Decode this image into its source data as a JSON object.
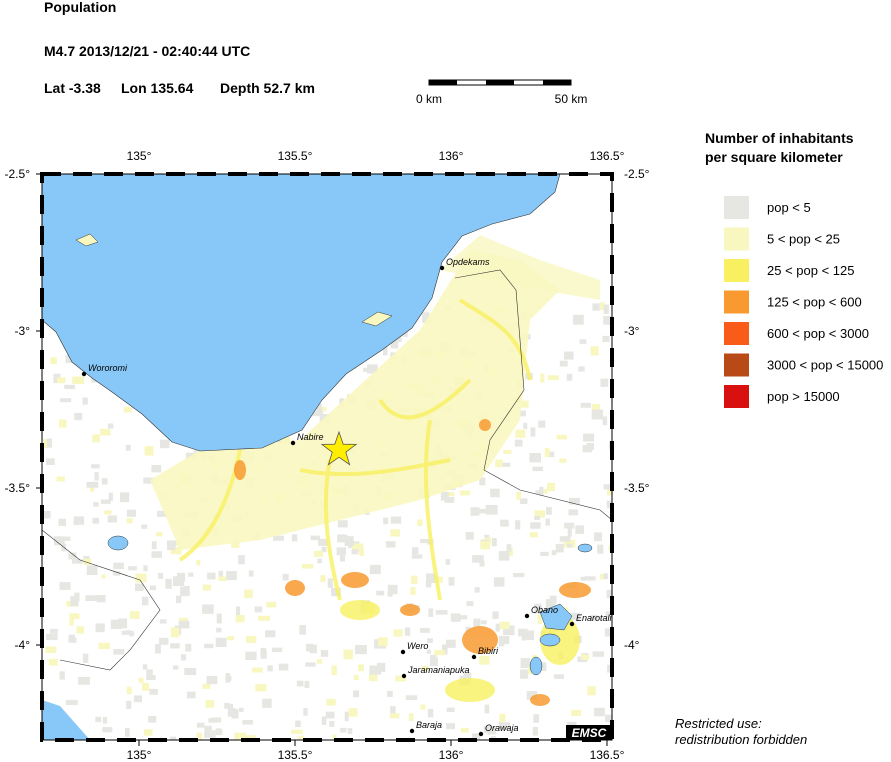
{
  "header": {
    "title": "Population",
    "event": "M4.7  2013/12/21 - 02:40:44 UTC",
    "lat": "Lat -3.38",
    "lon": "Lon 135.64",
    "depth": "Depth  52.7 km"
  },
  "scale_bar": {
    "start": "0 km",
    "end": "50 km"
  },
  "map": {
    "lon_ticks": [
      {
        "value": 135,
        "label": "135°"
      },
      {
        "value": 135.5,
        "label": "135.5°"
      },
      {
        "value": 136,
        "label": "136°"
      },
      {
        "value": 136.5,
        "label": "136.5°"
      }
    ],
    "lat_ticks": [
      {
        "value": -2.5,
        "label": "-2.5°"
      },
      {
        "value": -3,
        "label": "-3°"
      },
      {
        "value": -3.5,
        "label": "-3.5°"
      },
      {
        "value": -4,
        "label": "-4°"
      }
    ],
    "places": [
      "Opdekams",
      "Wororomi",
      "Nabire",
      "Obano",
      "Enarotali",
      "Wero",
      "Bibiri",
      "Jaramaniapuka",
      "Baraja",
      "Orawaja"
    ],
    "logo": "EMSC"
  },
  "legend": {
    "title": [
      "Number of inhabitants",
      "per square kilometer"
    ],
    "items": [
      {
        "label": "pop < 5",
        "color": "#e6e6e2"
      },
      {
        "label": "5 < pop < 25",
        "color": "#f9f7c0"
      },
      {
        "label": "25 < pop < 125",
        "color": "#f8f060"
      },
      {
        "label": "125 < pop < 600",
        "color": "#f89a30"
      },
      {
        "label": "600 < pop < 3000",
        "color": "#f85c18"
      },
      {
        "label": "3000 < pop < 15000",
        "color": "#b84a18"
      },
      {
        "label": "pop > 15000",
        "color": "#d81010"
      }
    ]
  },
  "footer": [
    "Restricted use:",
    "redistribution forbidden"
  ]
}
